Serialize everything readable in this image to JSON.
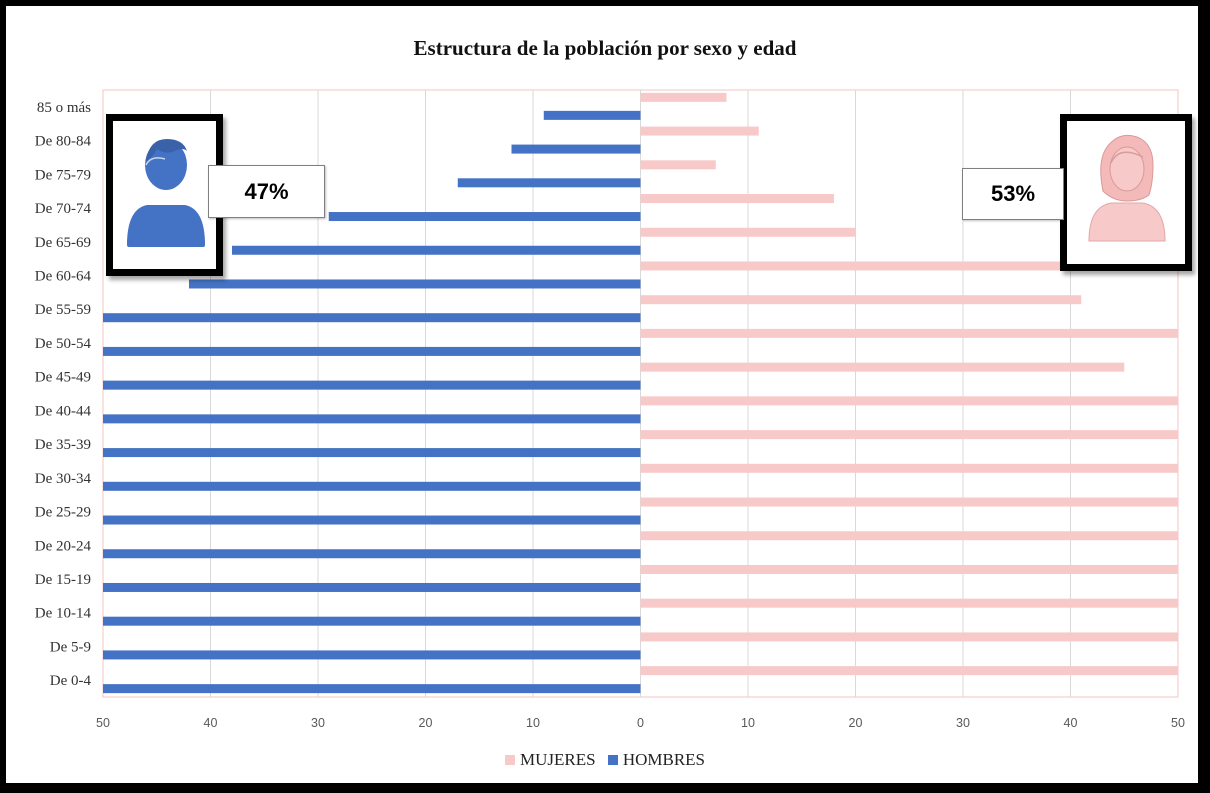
{
  "chart_data": {
    "type": "bar",
    "orientation": "horizontal-diverging",
    "title": "Estructura de la población  por sexo y edad",
    "categories": [
      "85 o más",
      "De 80-84",
      "De 75-79",
      "De 70-74",
      "De 65-69",
      "De 60-64",
      "De 55-59",
      "De 50-54",
      "De 45-49",
      "De 40-44",
      "De 35-39",
      "De 30-34",
      "De 25-29",
      "De 20-24",
      "De 15-19",
      "De 10-14",
      "De 5-9",
      "De 0-4"
    ],
    "series": [
      {
        "name": "MUJERES",
        "color": "#f8c9c9",
        "values": [
          8,
          11,
          7,
          18,
          20,
          48,
          41,
          50,
          45,
          50,
          50,
          50,
          50,
          50,
          50,
          50,
          50,
          50
        ]
      },
      {
        "name": "HOMBRES",
        "color": "#4472c4",
        "values": [
          9,
          12,
          17,
          29,
          38,
          42,
          50,
          50,
          50,
          50,
          50,
          50,
          50,
          50,
          50,
          50,
          50,
          50
        ]
      }
    ],
    "xlim": [
      -50,
      50
    ],
    "x_tick_values": [
      -50,
      -40,
      -30,
      -20,
      -10,
      0,
      10,
      20,
      30,
      40,
      50
    ],
    "x_tick_labels": [
      "50",
      "40",
      "30",
      "20",
      "10",
      "0",
      "10",
      "20",
      "30",
      "40",
      "50"
    ],
    "grid": "vertical",
    "legend": "bottom"
  },
  "legend": {
    "mujeres": "MUJERES",
    "hombres": "HOMBRES"
  },
  "callouts": {
    "hombres_pct": "47%",
    "mujeres_pct": "53%",
    "male_icon": "male-user-icon",
    "female_icon": "female-user-icon",
    "male_color": "#4472c4",
    "female_color": "#f8c9c9"
  }
}
